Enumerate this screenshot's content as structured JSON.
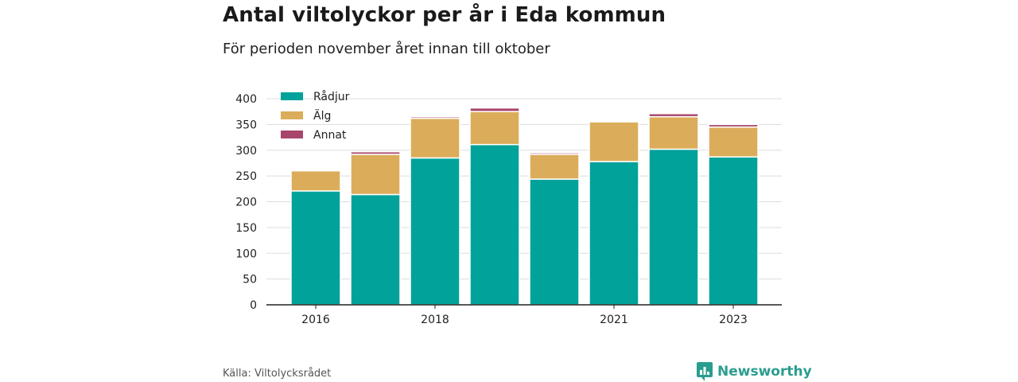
{
  "title": "Antal viltolyckor per år i Eda kommun",
  "subtitle": "För perioden november året innan till oktober",
  "source": "Källa: Viltolycksrådet",
  "brand": "Newsworthy",
  "colors": {
    "Rådjur": "#00a29a",
    "Älg": "#dbad5a",
    "Annat": "#a8456b",
    "brand": "#2a9d8f"
  },
  "chart_data": {
    "type": "bar",
    "stacked": true,
    "categories": [
      "2016",
      "2017",
      "2018",
      "2019",
      "2020",
      "2021",
      "2022",
      "2023"
    ],
    "x_tick_labels": [
      "2016",
      "",
      "2018",
      "",
      "",
      "2021",
      "",
      "2023"
    ],
    "series": [
      {
        "name": "Rådjur",
        "values": [
          221,
          214,
          285,
          311,
          244,
          278,
          302,
          287
        ]
      },
      {
        "name": "Älg",
        "values": [
          39,
          78,
          77,
          64,
          48,
          77,
          63,
          58
        ]
      },
      {
        "name": "Annat",
        "values": [
          0,
          5,
          3,
          7,
          3,
          0,
          6,
          5
        ]
      }
    ],
    "ylim": [
      0,
      400
    ],
    "yticks": [
      0,
      50,
      100,
      150,
      200,
      250,
      300,
      350,
      400
    ],
    "grid": true,
    "legend_position": "top-left"
  }
}
